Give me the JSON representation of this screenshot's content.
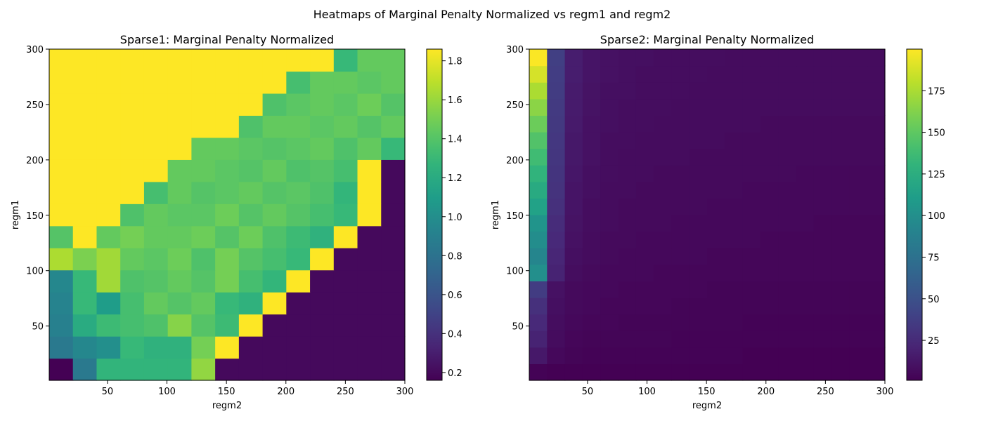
{
  "suptitle": "Heatmaps of Marginal Penalty Normalized vs regm1 and regm2",
  "chart_data": [
    {
      "type": "heatmap",
      "title": "Sparse1: Marginal Penalty Normalized",
      "xlabel": "regm2",
      "ylabel": "regm1",
      "x_range": [
        1,
        300
      ],
      "y_range": [
        1,
        300
      ],
      "x_ticks": [
        50,
        100,
        150,
        200,
        250,
        300
      ],
      "y_ticks": [
        50,
        100,
        150,
        200,
        250,
        300
      ],
      "grid": false,
      "colormap": "viridis",
      "value_range": [
        0.16,
        1.86
      ],
      "colorbar_ticks": [
        0.2,
        0.4,
        0.6,
        0.8,
        1.0,
        1.2,
        1.4,
        1.6,
        1.8
      ],
      "colorbar_tick_labels": [
        "0.2",
        "0.4",
        "0.6",
        "0.8",
        "1.0",
        "1.2",
        "1.4",
        "1.6",
        "1.8"
      ],
      "rows_note": "row 0 = lowest regm1 bin (bottom), 15 x 15 grid",
      "values": [
        [
          0.16,
          0.85,
          1.27,
          1.27,
          1.27,
          1.27,
          1.58,
          0.2,
          0.2,
          0.2,
          0.2,
          0.2,
          0.2,
          0.2,
          0.2
        ],
        [
          0.85,
          0.95,
          1.0,
          1.3,
          1.25,
          1.25,
          1.5,
          1.86,
          0.2,
          0.2,
          0.2,
          0.2,
          0.2,
          0.2,
          0.2
        ],
        [
          0.9,
          1.2,
          1.32,
          1.35,
          1.38,
          1.55,
          1.4,
          1.32,
          1.86,
          0.2,
          0.2,
          0.2,
          0.2,
          0.2,
          0.2
        ],
        [
          0.92,
          1.3,
          1.1,
          1.35,
          1.45,
          1.4,
          1.45,
          1.3,
          1.25,
          1.86,
          0.2,
          0.2,
          0.2,
          0.2,
          0.2
        ],
        [
          0.95,
          1.3,
          1.62,
          1.38,
          1.4,
          1.45,
          1.4,
          1.5,
          1.35,
          1.28,
          1.86,
          0.2,
          0.2,
          0.2,
          0.2
        ],
        [
          1.65,
          1.52,
          1.62,
          1.45,
          1.42,
          1.48,
          1.38,
          1.5,
          1.4,
          1.35,
          1.3,
          1.86,
          0.2,
          0.2,
          0.2
        ],
        [
          1.4,
          1.86,
          1.45,
          1.5,
          1.45,
          1.45,
          1.48,
          1.4,
          1.48,
          1.38,
          1.32,
          1.25,
          1.86,
          0.2,
          0.2
        ],
        [
          1.86,
          1.86,
          1.86,
          1.38,
          1.45,
          1.42,
          1.42,
          1.48,
          1.4,
          1.45,
          1.4,
          1.35,
          1.3,
          1.86,
          0.2
        ],
        [
          1.86,
          1.86,
          1.86,
          1.86,
          1.35,
          1.45,
          1.4,
          1.42,
          1.45,
          1.4,
          1.42,
          1.38,
          1.28,
          1.86,
          0.2
        ],
        [
          1.86,
          1.86,
          1.86,
          1.86,
          1.86,
          1.45,
          1.45,
          1.42,
          1.4,
          1.45,
          1.38,
          1.4,
          1.35,
          1.86,
          0.2
        ],
        [
          1.86,
          1.86,
          1.86,
          1.86,
          1.86,
          1.86,
          1.45,
          1.45,
          1.42,
          1.4,
          1.42,
          1.45,
          1.38,
          1.45,
          1.3
        ],
        [
          1.86,
          1.86,
          1.86,
          1.86,
          1.86,
          1.86,
          1.86,
          1.86,
          1.38,
          1.45,
          1.45,
          1.42,
          1.45,
          1.4,
          1.45
        ],
        [
          1.86,
          1.86,
          1.86,
          1.86,
          1.86,
          1.86,
          1.86,
          1.86,
          1.86,
          1.38,
          1.42,
          1.45,
          1.42,
          1.48,
          1.4
        ],
        [
          1.86,
          1.86,
          1.86,
          1.86,
          1.86,
          1.86,
          1.86,
          1.86,
          1.86,
          1.86,
          1.35,
          1.45,
          1.45,
          1.42,
          1.45
        ],
        [
          1.86,
          1.86,
          1.86,
          1.86,
          1.86,
          1.86,
          1.86,
          1.86,
          1.86,
          1.86,
          1.86,
          1.86,
          1.3,
          1.45,
          1.45
        ]
      ]
    },
    {
      "type": "heatmap",
      "title": "Sparse2: Marginal Penalty Normalized",
      "xlabel": "regm2",
      "ylabel": "regm1",
      "x_range": [
        1,
        300
      ],
      "y_range": [
        1,
        300
      ],
      "x_ticks": [
        50,
        100,
        150,
        200,
        250,
        300
      ],
      "y_ticks": [
        50,
        100,
        150,
        200,
        250,
        300
      ],
      "grid": false,
      "colormap": "viridis",
      "value_range": [
        1,
        200
      ],
      "colorbar_ticks": [
        25,
        50,
        75,
        100,
        125,
        150,
        175
      ],
      "colorbar_tick_labels": [
        "25",
        "50",
        "75",
        "100",
        "125",
        "150",
        "175"
      ],
      "rows_note": "row 0 = lowest regm1 bin (bottom), 20 x 20 grid",
      "values": [
        [
          2,
          1,
          1,
          1,
          1,
          1,
          1,
          1,
          1,
          1,
          1,
          1,
          1,
          1,
          1,
          1,
          1,
          1,
          1,
          1
        ],
        [
          14,
          5,
          3,
          2,
          2,
          2,
          2,
          2,
          2,
          2,
          2,
          2,
          1,
          1,
          1,
          1,
          1,
          1,
          1,
          1
        ],
        [
          20,
          7,
          4,
          3,
          3,
          3,
          3,
          3,
          2,
          2,
          2,
          2,
          2,
          2,
          2,
          2,
          2,
          2,
          2,
          2
        ],
        [
          24,
          8,
          5,
          4,
          4,
          3,
          3,
          3,
          3,
          3,
          3,
          3,
          2,
          2,
          2,
          2,
          2,
          2,
          2,
          2
        ],
        [
          28,
          9,
          6,
          5,
          4,
          4,
          4,
          4,
          3,
          3,
          3,
          3,
          3,
          3,
          3,
          3,
          3,
          3,
          3,
          3
        ],
        [
          36,
          10,
          6,
          5,
          5,
          4,
          4,
          4,
          4,
          4,
          3,
          3,
          3,
          3,
          3,
          3,
          3,
          3,
          3,
          3
        ],
        [
          100,
          20,
          8,
          6,
          5,
          5,
          5,
          4,
          4,
          4,
          4,
          4,
          4,
          4,
          4,
          4,
          4,
          4,
          4,
          4
        ],
        [
          92,
          22,
          9,
          7,
          6,
          5,
          5,
          5,
          5,
          5,
          4,
          4,
          4,
          4,
          4,
          4,
          4,
          4,
          4,
          4
        ],
        [
          98,
          24,
          10,
          7,
          6,
          6,
          5,
          5,
          5,
          5,
          5,
          5,
          5,
          4,
          4,
          4,
          4,
          4,
          4,
          4
        ],
        [
          104,
          26,
          11,
          8,
          7,
          6,
          6,
          6,
          5,
          5,
          5,
          5,
          5,
          5,
          5,
          5,
          4,
          4,
          4,
          4
        ],
        [
          115,
          28,
          12,
          8,
          7,
          6,
          6,
          6,
          6,
          6,
          5,
          5,
          5,
          5,
          5,
          5,
          5,
          5,
          5,
          5
        ],
        [
          122,
          30,
          12,
          9,
          7,
          7,
          6,
          6,
          6,
          6,
          6,
          6,
          5,
          5,
          5,
          5,
          5,
          5,
          5,
          5
        ],
        [
          130,
          31,
          13,
          9,
          8,
          7,
          7,
          6,
          6,
          6,
          6,
          6,
          6,
          6,
          6,
          5,
          5,
          5,
          5,
          5
        ],
        [
          138,
          32,
          14,
          10,
          8,
          7,
          7,
          7,
          7,
          6,
          6,
          6,
          6,
          6,
          6,
          6,
          6,
          6,
          6,
          6
        ],
        [
          145,
          33,
          14,
          10,
          8,
          8,
          7,
          7,
          7,
          7,
          7,
          6,
          6,
          6,
          6,
          6,
          6,
          6,
          6,
          6
        ],
        [
          155,
          34,
          15,
          10,
          9,
          8,
          8,
          7,
          7,
          7,
          7,
          7,
          7,
          6,
          6,
          6,
          6,
          6,
          6,
          6
        ],
        [
          165,
          35,
          16,
          11,
          9,
          8,
          8,
          8,
          7,
          7,
          7,
          7,
          7,
          7,
          7,
          7,
          7,
          7,
          7,
          7
        ],
        [
          175,
          36,
          16,
          11,
          9,
          9,
          8,
          8,
          8,
          7,
          7,
          7,
          7,
          7,
          7,
          7,
          7,
          7,
          7,
          7
        ],
        [
          188,
          37,
          17,
          12,
          10,
          9,
          8,
          8,
          8,
          8,
          7,
          7,
          7,
          7,
          7,
          7,
          7,
          7,
          7,
          7
        ],
        [
          199,
          38,
          17,
          12,
          10,
          9,
          9,
          8,
          8,
          8,
          8,
          7,
          7,
          7,
          7,
          7,
          7,
          7,
          7,
          7
        ]
      ]
    }
  ]
}
